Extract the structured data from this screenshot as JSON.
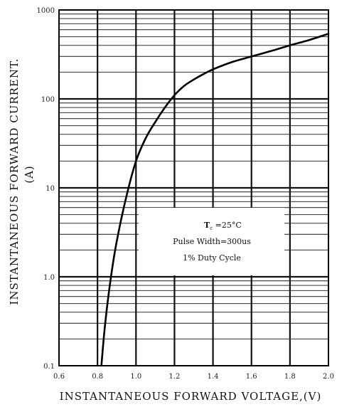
{
  "chart_data": {
    "type": "line",
    "xlabel": "INSTANTANEOUS FORWARD VOLTAGE,(V)",
    "ylabel_line1": "INSTANTANEOUS FORWARD CURRENT.",
    "ylabel_line2": "(A)",
    "xlim": [
      0.6,
      2.0
    ],
    "ylim": [
      0.1,
      1000
    ],
    "yscale": "log",
    "grid": true,
    "x_ticks": [
      0.6,
      0.8,
      1.0,
      1.2,
      1.4,
      1.6,
      1.8,
      2.0
    ],
    "x_tick_labels": [
      "0.6",
      "0.8",
      "1.0",
      "1.2",
      "1.4",
      "1.6",
      "1.8",
      "2.0"
    ],
    "y_ticks": [
      0.1,
      1,
      10,
      100,
      1000
    ],
    "y_tick_labels": [
      "0.1",
      "1.0",
      "10",
      "100",
      "1000"
    ],
    "series": [
      {
        "x": [
          0.82,
          0.84,
          0.87,
          0.9,
          0.95,
          1.0,
          1.05,
          1.1,
          1.15,
          1.2,
          1.25,
          1.3,
          1.35,
          1.4,
          1.5,
          1.6,
          1.7,
          1.8,
          1.9,
          2.0
        ],
        "y": [
          0.1,
          0.3,
          1.0,
          2.5,
          8,
          20,
          36,
          55,
          80,
          110,
          140,
          165,
          190,
          215,
          260,
          300,
          345,
          400,
          460,
          540
        ]
      }
    ],
    "annotation": {
      "line1_main": "T",
      "line1_sub": "c",
      "line1_rest": " =25°C",
      "line2": "Pulse Width=300us",
      "line3": "1% Duty Cycle"
    }
  }
}
